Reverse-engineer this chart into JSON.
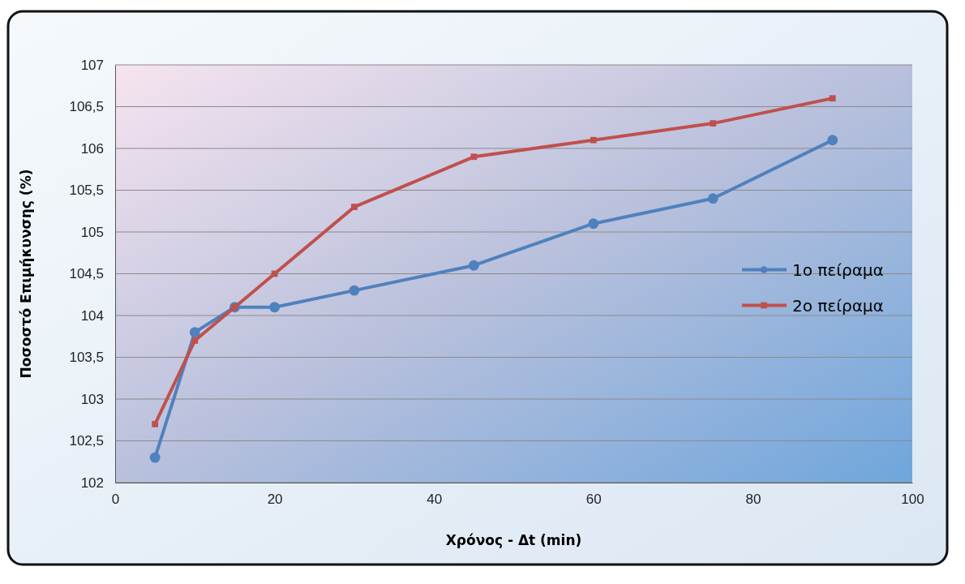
{
  "chart_data": {
    "type": "line",
    "xlabel": "Χρόνος - Δt (min)",
    "ylabel": "Ποσοστό Επιμήκυνσης (%)",
    "x": [
      5,
      10,
      15,
      20,
      30,
      45,
      60,
      75,
      90
    ],
    "series": [
      {
        "name": "1ο πείραμα",
        "color": "#4f81bd",
        "marker": "circle",
        "values": [
          102.3,
          103.8,
          104.1,
          104.1,
          104.3,
          104.6,
          105.1,
          105.4,
          106.1
        ]
      },
      {
        "name": "2ο πείραμα",
        "color": "#c0504d",
        "marker": "square",
        "values": [
          102.7,
          103.7,
          104.1,
          104.5,
          105.3,
          105.9,
          106.1,
          106.3,
          106.6
        ]
      }
    ],
    "xlim": [
      0,
      100
    ],
    "xticks": [
      0,
      20,
      40,
      60,
      80,
      100
    ],
    "ylim": [
      102,
      107
    ],
    "yticks": [
      102,
      {
        "value": 102.5,
        "label": "102,5"
      },
      103,
      {
        "value": 103.5,
        "label": "103,5"
      },
      104,
      {
        "value": 104.5,
        "label": "104,5"
      },
      105,
      {
        "value": 105.5,
        "label": "105,5"
      },
      106,
      {
        "value": 106.5,
        "label": "106,5"
      },
      107
    ],
    "grid": "y",
    "legend": "right",
    "line_style": "solid"
  }
}
